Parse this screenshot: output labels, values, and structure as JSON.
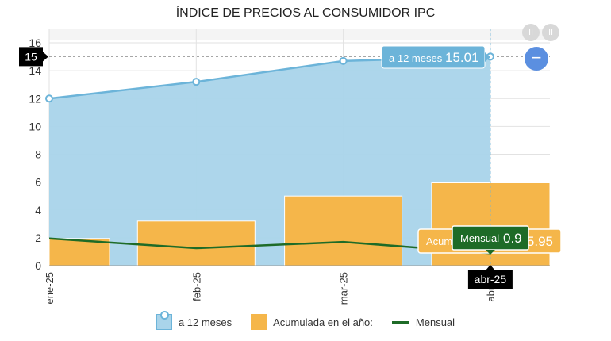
{
  "chart_data": {
    "type": "bar",
    "title": "ÍNDICE DE PRECIOS AL CONSUMIDOR IPC",
    "categories": [
      "ene-25",
      "feb-25",
      "mar-25",
      "abr-25"
    ],
    "ylim": [
      0,
      16
    ],
    "yticks": [
      0,
      2,
      4,
      6,
      8,
      10,
      12,
      14,
      16
    ],
    "grid": true,
    "legend_position": "bottom",
    "series": [
      {
        "name": "a 12 meses",
        "kind": "area",
        "values": [
          12.0,
          13.2,
          14.7,
          15.01
        ],
        "color": "#a9d4ea",
        "stroke": "#6cb4d9"
      },
      {
        "name": "Acumulada en el año:",
        "kind": "bar",
        "values": [
          1.95,
          3.2,
          5.0,
          5.95
        ],
        "color": "#f5b64a"
      },
      {
        "name": "Mensual",
        "kind": "line",
        "values": [
          1.95,
          1.25,
          1.7,
          0.9
        ],
        "color": "#1e6b27"
      }
    ],
    "hover": {
      "category": "abr-25",
      "y_label": "15",
      "tooltip_12m_label": "a 12 meses",
      "tooltip_12m_value": "15.01",
      "tooltip_acum_label": "Acumulada en el año:",
      "tooltip_acum_value": "5.95",
      "tooltip_mensual_label": "Mensual",
      "tooltip_mensual_value": "0.9"
    }
  },
  "controls": {
    "collapse_glyph": "−",
    "pause_glyph": "II"
  }
}
